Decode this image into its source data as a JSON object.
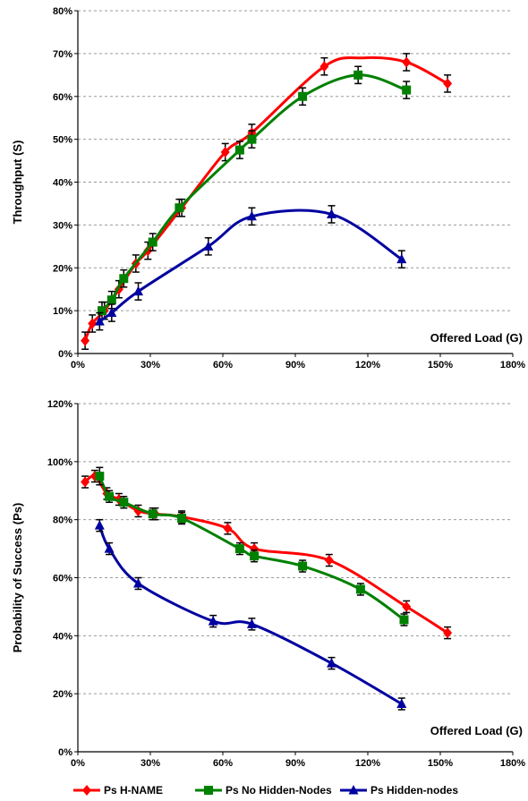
{
  "chart_data": [
    {
      "type": "line",
      "ylabel": "Throughput (S)",
      "xlabel": "Offered Load (G)",
      "xlim": [
        0,
        180
      ],
      "ylim": [
        0,
        80
      ],
      "xticks": [
        "0%",
        "30%",
        "60%",
        "90%",
        "120%",
        "150%",
        "180%"
      ],
      "yticks": [
        "0%",
        "10%",
        "20%",
        "30%",
        "40%",
        "50%",
        "60%",
        "70%",
        "80%"
      ],
      "grid": "horizontal dashed",
      "series": [
        {
          "name": "Ps H-NAME",
          "color": "#ff0000",
          "marker": "diamond",
          "x": [
            3,
            6,
            11,
            17,
            24,
            29,
            43,
            61,
            72,
            102,
            136,
            153
          ],
          "y": [
            3,
            7,
            10,
            15,
            21,
            24,
            34,
            47,
            51.5,
            67,
            68,
            63
          ],
          "err": [
            2,
            2,
            2,
            2,
            2,
            2,
            2,
            2,
            2,
            2,
            2,
            2
          ],
          "curve_peak": [
            118,
            69
          ]
        },
        {
          "name": "Ps No Hidden-Nodes",
          "color": "#008000",
          "marker": "square",
          "x": [
            10,
            14,
            19,
            31,
            42,
            67,
            72,
            93,
            116,
            136
          ],
          "y": [
            10,
            12.5,
            17.5,
            26,
            34,
            47.5,
            50,
            60,
            65,
            61.5
          ],
          "err": [
            2,
            2,
            2,
            2,
            2,
            2,
            2,
            2,
            2,
            2
          ]
        },
        {
          "name": "Ps Hidden-nodes",
          "color": "#0000a0",
          "marker": "triangle",
          "x": [
            9,
            14,
            25,
            54,
            72,
            105,
            134
          ],
          "y": [
            7.5,
            9.5,
            14.5,
            25,
            32,
            32.5,
            22
          ],
          "err": [
            2,
            2,
            2,
            2,
            2,
            2,
            2
          ]
        }
      ]
    },
    {
      "type": "line",
      "ylabel": "Probability of Success (Ps)",
      "xlabel": "Offered Load (G)",
      "xlim": [
        0,
        180
      ],
      "ylim": [
        0,
        120
      ],
      "xticks": [
        "0%",
        "30%",
        "60%",
        "90%",
        "120%",
        "150%",
        "180%"
      ],
      "yticks": [
        "0%",
        "20%",
        "40%",
        "60%",
        "80%",
        "100%",
        "120%"
      ],
      "grid": "horizontal dashed",
      "legend_position": "bottom",
      "series": [
        {
          "name": "Ps H-NAME",
          "color": "#ff0000",
          "marker": "diamond",
          "x": [
            3,
            7,
            12,
            17,
            25,
            32,
            43,
            62,
            73,
            104,
            136,
            153
          ],
          "y": [
            93,
            95,
            89,
            87,
            83,
            82,
            81,
            77,
            70,
            66,
            50,
            41
          ],
          "err": [
            2,
            2,
            2,
            2,
            2,
            2,
            2,
            2,
            2,
            2,
            2,
            2
          ]
        },
        {
          "name": "Ps No Hidden-Nodes",
          "color": "#008000",
          "marker": "square",
          "x": [
            9,
            13,
            19,
            31,
            43,
            67,
            73,
            93,
            117,
            135
          ],
          "y": [
            95,
            88,
            86,
            82,
            80.5,
            70,
            67.5,
            64,
            56,
            45.5
          ],
          "err": [
            3,
            2,
            2,
            2,
            2,
            2,
            2,
            2,
            2,
            2
          ]
        },
        {
          "name": "Ps Hidden-nodes",
          "color": "#0000a0",
          "marker": "triangle",
          "x": [
            9,
            13,
            25,
            56,
            72,
            105,
            134
          ],
          "y": [
            78,
            70,
            58,
            45,
            44,
            30.5,
            16.5
          ],
          "err": [
            2,
            2,
            2,
            2,
            2,
            2,
            2
          ]
        }
      ]
    }
  ]
}
